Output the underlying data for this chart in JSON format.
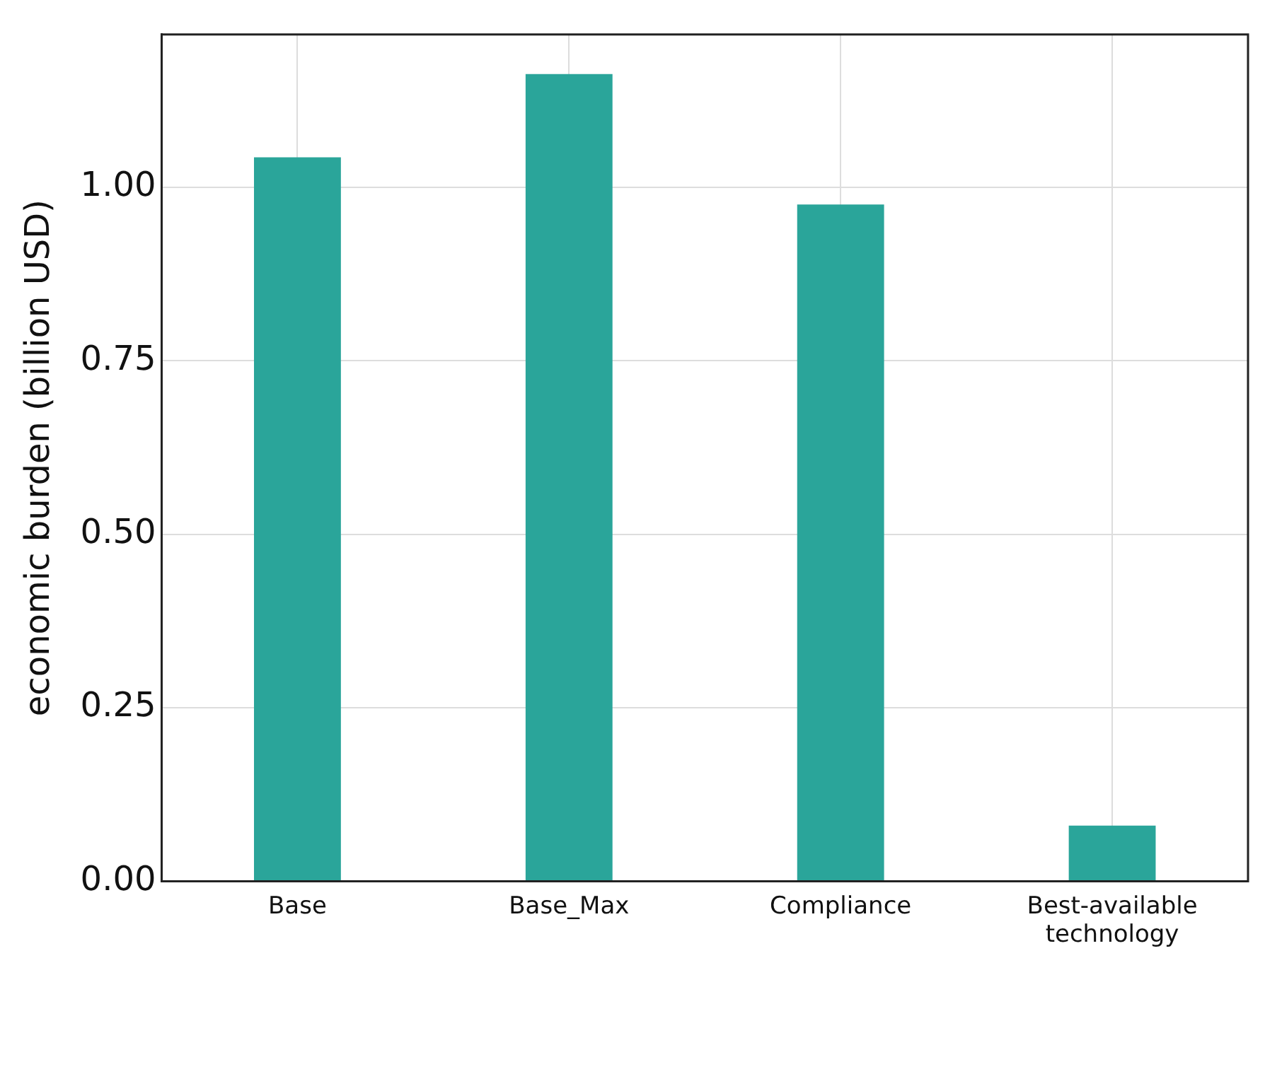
{
  "chart_data": {
    "type": "bar",
    "ylabel": "economic burden (billion USD)",
    "categories": [
      "Base",
      "Base_Max",
      "Compliance",
      "Best-available technology"
    ],
    "values": [
      1.043,
      1.163,
      0.975,
      0.08
    ],
    "color": "#2aa59a",
    "ylim": [
      0,
      1.22
    ],
    "yticks": [
      {
        "value": 0,
        "label": "0.00"
      },
      {
        "value": 0.25,
        "label": "0.25"
      },
      {
        "value": 0.5,
        "label": "0.50"
      },
      {
        "value": 0.75,
        "label": "0.75"
      },
      {
        "value": 1,
        "label": "1.00"
      }
    ],
    "grid": true,
    "legend": false
  }
}
